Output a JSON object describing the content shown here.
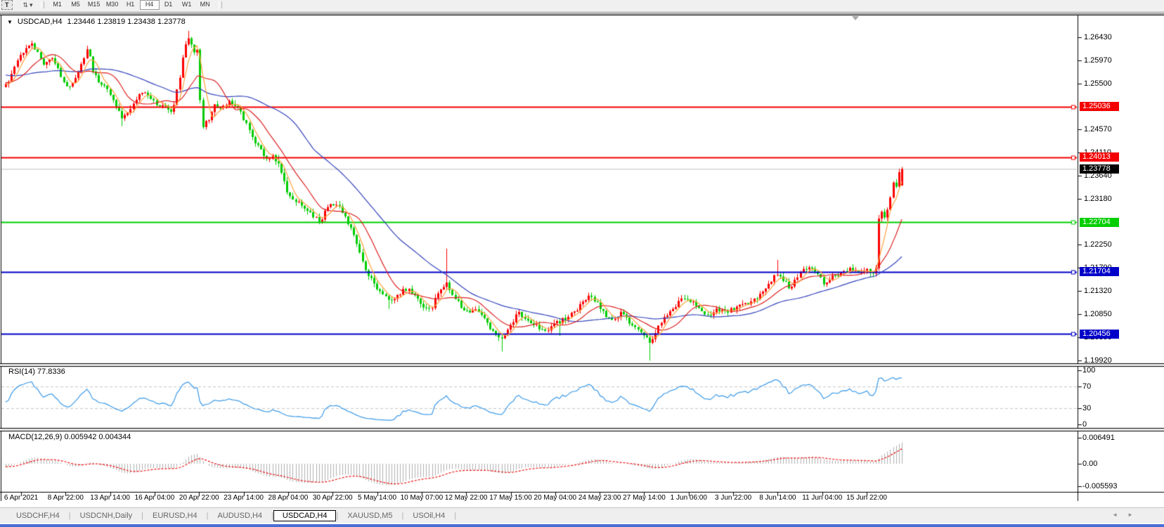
{
  "toolbar": {
    "tool_button": "T",
    "cursor_icon": "⇅",
    "dropdown_caret": "▾",
    "timeframes": [
      "M1",
      "M5",
      "M15",
      "M30",
      "H1",
      "H4",
      "D1",
      "W1",
      "MN"
    ],
    "active_timeframe": "H4"
  },
  "chart_header": {
    "caret": "▼",
    "symbol": "USDCAD,H4",
    "ohlc": "1.23446 1.23819 1.23438 1.23778"
  },
  "indicator_labels": {
    "rsi": "RSI(14) 77.8336",
    "macd": "MACD(12,26,9) 0.005942 0.004344"
  },
  "price_axis_ticks": [
    "1.26430",
    "1.25970",
    "1.25500",
    "1.24570",
    "1.24110",
    "1.23640",
    "1.23180",
    "1.22250",
    "1.21790",
    "1.21320",
    "1.20850",
    "1.20390",
    "1.19920"
  ],
  "rsi_axis_ticks": [
    "100",
    "70",
    "30",
    "0"
  ],
  "macd_axis_ticks": [
    "0.006491",
    "0.00",
    "-0.005593"
  ],
  "current_price_label": "1.23778",
  "date_axis": [
    "6 Apr 2021",
    "8 Apr 22:00",
    "13 Apr 14:00",
    "16 Apr 04:00",
    "20 Apr 22:00",
    "23 Apr 14:00",
    "28 Apr 04:00",
    "30 Apr 22:00",
    "5 May 14:00",
    "10 May 07:00",
    "12 May 22:00",
    "17 May 15:00",
    "20 May 04:00",
    "24 May 23:00",
    "27 May 14:00",
    "1 Jun 06:00",
    "3 Jun 22:00",
    "8 Jun 14:00",
    "11 Jun 04:00",
    "15 Jun 22:00"
  ],
  "tabs": {
    "items": [
      "USDCHF,H4",
      "USDCNH,Daily",
      "EURUSD,H4",
      "AUDUSD,H4",
      "USDCAD,H4",
      "XAUUSD,M5",
      "USOil,H4"
    ],
    "active": "USDCAD,H4",
    "scroll_left": "◄",
    "scroll_right": "►"
  },
  "colors": {
    "bull_candle": "#fe0000",
    "bear_candle": "#00cc00",
    "ma_fast": "#ffa23d",
    "ma_mid": "#dd2222",
    "ma_slow": "#3344bb",
    "rsi_line": "#3a99e8",
    "rsi_levels": "#c4c4c4",
    "macd_hist": "#b0b0b0",
    "macd_signal": "#ee1111",
    "level_red": "#f40000",
    "level_green": "#00ce00",
    "level_blue": "#0000c8",
    "current_price_line": "#bdbdbd",
    "current_price_bg": "#000000",
    "bottom_strip": "#4a6fd4"
  },
  "chart_data": {
    "type": "candlestick",
    "symbol": "USDCAD",
    "timeframe": "H4",
    "title": "USDCAD,H4",
    "current_bar": {
      "open": 1.23446,
      "high": 1.23819,
      "low": 1.23438,
      "close": 1.23778
    },
    "current_price": 1.23778,
    "x_labels": [
      "6 Apr 2021",
      "8 Apr 22:00",
      "13 Apr 14:00",
      "16 Apr 04:00",
      "20 Apr 22:00",
      "23 Apr 14:00",
      "28 Apr 04:00",
      "30 Apr 22:00",
      "5 May 14:00",
      "10 May 07:00",
      "12 May 22:00",
      "17 May 15:00",
      "20 May 04:00",
      "24 May 23:00",
      "27 May 14:00",
      "1 Jun 06:00",
      "3 Jun 22:00",
      "8 Jun 14:00",
      "11 Jun 04:00",
      "15 Jun 22:00"
    ],
    "ylim": [
      1.19864,
      1.26855
    ],
    "y_ticks": [
      1.2643,
      1.2597,
      1.255,
      1.2457,
      1.2411,
      1.2364,
      1.2318,
      1.2225,
      1.2179,
      1.2132,
      1.2085,
      1.2039,
      1.1992
    ],
    "grid": false,
    "up_means": "red = bullish, green = bearish",
    "horizontal_levels": [
      {
        "label": "1.25036",
        "price": 1.25036,
        "color": "#f40000",
        "role": "resistance"
      },
      {
        "label": "1.24013",
        "price": 1.24013,
        "color": "#f40000",
        "role": "resistance"
      },
      {
        "label": "1.22704",
        "price": 1.22704,
        "color": "#00ce00",
        "role": "broken-resistance"
      },
      {
        "label": "1.21704",
        "price": 1.21704,
        "color": "#0000c8",
        "role": "support"
      },
      {
        "label": "1.20456",
        "price": 1.20456,
        "color": "#0000c8",
        "role": "support"
      }
    ],
    "moving_averages": [
      {
        "period": 5,
        "color": "#ffa23d"
      },
      {
        "period": 13,
        "color": "#dd2222"
      },
      {
        "period": 40,
        "color": "#3344bb"
      }
    ],
    "indicators": {
      "rsi": {
        "name": "RSI",
        "period": 14,
        "value": 77.8336,
        "levels": [
          30,
          70
        ],
        "scale": [
          0,
          100
        ]
      },
      "macd": {
        "name": "MACD",
        "fast": 12,
        "slow": 26,
        "signal": 9,
        "macd_value": 0.005942,
        "signal_value": 0.004344,
        "scale_max": 0.006491,
        "scale_min": -0.005593
      }
    },
    "bars_visible": 310,
    "close_path": [
      [
        8,
        1.2545
      ],
      [
        18,
        1.2575
      ],
      [
        30,
        1.261
      ],
      [
        42,
        1.263
      ],
      [
        52,
        1.262
      ],
      [
        62,
        1.259
      ],
      [
        72,
        1.2603
      ],
      [
        85,
        1.257
      ],
      [
        98,
        1.2538
      ],
      [
        108,
        1.2562
      ],
      [
        120,
        1.26
      ],
      [
        126,
        1.263
      ],
      [
        130,
        1.2575
      ],
      [
        140,
        1.2555
      ],
      [
        152,
        1.254
      ],
      [
        165,
        1.25
      ],
      [
        175,
        1.2478
      ],
      [
        188,
        1.2502
      ],
      [
        200,
        1.2535
      ],
      [
        212,
        1.2525
      ],
      [
        222,
        1.2505
      ],
      [
        232,
        1.2508
      ],
      [
        245,
        1.2495
      ],
      [
        255,
        1.2555
      ],
      [
        262,
        1.2625
      ],
      [
        268,
        1.2645
      ],
      [
        275,
        1.2615
      ],
      [
        282,
        1.2623
      ],
      [
        286,
        1.2455
      ],
      [
        295,
        1.2475
      ],
      [
        305,
        1.2505
      ],
      [
        315,
        1.25
      ],
      [
        325,
        1.2512
      ],
      [
        338,
        1.25
      ],
      [
        348,
        1.2475
      ],
      [
        358,
        1.2445
      ],
      [
        368,
        1.242
      ],
      [
        378,
        1.24
      ],
      [
        390,
        1.2402
      ],
      [
        398,
        1.238
      ],
      [
        408,
        1.233
      ],
      [
        420,
        1.2315
      ],
      [
        432,
        1.23
      ],
      [
        444,
        1.2285
      ],
      [
        455,
        1.2272
      ],
      [
        465,
        1.23
      ],
      [
        475,
        1.2308
      ],
      [
        485,
        1.2295
      ],
      [
        495,
        1.227
      ],
      [
        505,
        1.2235
      ],
      [
        517,
        1.2185
      ],
      [
        530,
        1.215
      ],
      [
        542,
        1.2128
      ],
      [
        555,
        1.2108
      ],
      [
        568,
        1.2128
      ],
      [
        580,
        1.2138
      ],
      [
        592,
        1.212
      ],
      [
        602,
        1.2102
      ],
      [
        612,
        1.2092
      ],
      [
        622,
        1.2128
      ],
      [
        634,
        1.2148
      ],
      [
        645,
        1.2125
      ],
      [
        656,
        1.21
      ],
      [
        666,
        1.2088
      ],
      [
        678,
        1.2098
      ],
      [
        690,
        1.2072
      ],
      [
        702,
        1.2048
      ],
      [
        715,
        1.2038
      ],
      [
        727,
        1.2068
      ],
      [
        738,
        1.2088
      ],
      [
        750,
        1.2072
      ],
      [
        762,
        1.2062
      ],
      [
        774,
        1.2052
      ],
      [
        786,
        1.2062
      ],
      [
        798,
        1.2072
      ],
      [
        810,
        1.2082
      ],
      [
        823,
        1.2098
      ],
      [
        836,
        1.2122
      ],
      [
        847,
        1.2112
      ],
      [
        858,
        1.2088
      ],
      [
        870,
        1.2072
      ],
      [
        882,
        1.2088
      ],
      [
        894,
        1.2072
      ],
      [
        905,
        1.2055
      ],
      [
        916,
        1.2042
      ],
      [
        926,
        1.2028
      ],
      [
        936,
        1.2058
      ],
      [
        948,
        1.2082
      ],
      [
        960,
        1.2102
      ],
      [
        972,
        1.2118
      ],
      [
        984,
        1.2112
      ],
      [
        996,
        1.2092
      ],
      [
        1008,
        1.2082
      ],
      [
        1020,
        1.2096
      ],
      [
        1034,
        1.209
      ],
      [
        1048,
        1.2098
      ],
      [
        1060,
        1.2105
      ],
      [
        1072,
        1.2112
      ],
      [
        1084,
        1.2128
      ],
      [
        1096,
        1.2152
      ],
      [
        1106,
        1.2168
      ],
      [
        1114,
        1.2152
      ],
      [
        1124,
        1.2138
      ],
      [
        1134,
        1.2162
      ],
      [
        1144,
        1.2178
      ],
      [
        1154,
        1.2182
      ],
      [
        1163,
        1.2168
      ],
      [
        1171,
        1.2146
      ],
      [
        1180,
        1.2158
      ],
      [
        1190,
        1.2165
      ],
      [
        1200,
        1.2172
      ],
      [
        1210,
        1.2178
      ],
      [
        1220,
        1.2168
      ],
      [
        1230,
        1.2176
      ],
      [
        1240,
        1.2172
      ],
      [
        1245,
        1.2152
      ],
      [
        1249,
        1.2272
      ],
      [
        1254,
        1.2288
      ],
      [
        1258,
        1.2278
      ],
      [
        1263,
        1.2302
      ],
      [
        1268,
        1.2332
      ],
      [
        1272,
        1.2355
      ],
      [
        1276,
        1.2342
      ],
      [
        1279,
        1.2368
      ],
      [
        1281,
        1.2352
      ],
      [
        1283,
        1.23778
      ]
    ],
    "wick_events": [
      {
        "x": 634,
        "high": 0.0068
      },
      {
        "x": 268,
        "high": 0.0008
      },
      {
        "x": 926,
        "low": 0.003
      },
      {
        "x": 715,
        "low": 0.0024
      },
      {
        "x": 798,
        "low": 0.002
      },
      {
        "x": 552,
        "low": 0.0013
      },
      {
        "x": 1104,
        "high": 0.0028
      },
      {
        "x": 396,
        "high": 0.0013
      },
      {
        "x": 175,
        "low": 0.001
      }
    ]
  }
}
